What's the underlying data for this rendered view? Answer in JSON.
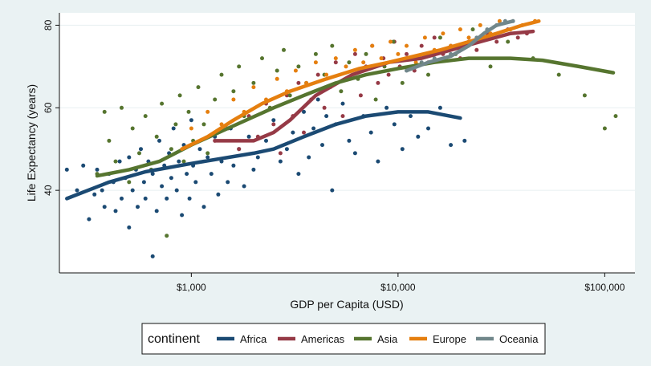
{
  "chart_data": {
    "type": "scatter",
    "title": "",
    "xlabel": "GDP per Capita (USD)",
    "ylabel": "Life Expectancy (years)",
    "x_scale": "log",
    "xlim": [
      230,
      140000
    ],
    "ylim": [
      20,
      83
    ],
    "x_ticks": [
      {
        "value": 1000,
        "label": "$1,000"
      },
      {
        "value": 10000,
        "label": "$10,000"
      },
      {
        "value": 100000,
        "label": "$100,000"
      }
    ],
    "y_ticks": [
      {
        "value": 40,
        "label": "40"
      },
      {
        "value": 60,
        "label": "60"
      },
      {
        "value": 80,
        "label": "80"
      }
    ],
    "grid": "horizontal",
    "legend": {
      "title": "continent",
      "position": "bottom"
    },
    "series": [
      {
        "name": "Africa",
        "color": "#1b4a73",
        "smooth": [
          [
            250,
            38
          ],
          [
            400,
            42
          ],
          [
            600,
            44.5
          ],
          [
            1000,
            46.5
          ],
          [
            2000,
            49
          ],
          [
            2500,
            50
          ],
          [
            3500,
            53
          ],
          [
            5000,
            56
          ],
          [
            7000,
            58
          ],
          [
            10000,
            59
          ],
          [
            14000,
            59
          ],
          [
            20000,
            57.5
          ]
        ],
        "points": [
          [
            250,
            45
          ],
          [
            280,
            40
          ],
          [
            300,
            46
          ],
          [
            320,
            33
          ],
          [
            340,
            39
          ],
          [
            350,
            45
          ],
          [
            370,
            40
          ],
          [
            380,
            36
          ],
          [
            400,
            44
          ],
          [
            420,
            42
          ],
          [
            430,
            35
          ],
          [
            450,
            47
          ],
          [
            460,
            38
          ],
          [
            480,
            43
          ],
          [
            500,
            48
          ],
          [
            500,
            31
          ],
          [
            520,
            40
          ],
          [
            540,
            45
          ],
          [
            550,
            36
          ],
          [
            570,
            50
          ],
          [
            590,
            42
          ],
          [
            600,
            38
          ],
          [
            620,
            47
          ],
          [
            650,
            24
          ],
          [
            650,
            44
          ],
          [
            680,
            35
          ],
          [
            700,
            52
          ],
          [
            720,
            41
          ],
          [
            740,
            46
          ],
          [
            760,
            38
          ],
          [
            780,
            49
          ],
          [
            800,
            43
          ],
          [
            820,
            55
          ],
          [
            850,
            40
          ],
          [
            870,
            47
          ],
          [
            900,
            34
          ],
          [
            920,
            51
          ],
          [
            950,
            44
          ],
          [
            980,
            38
          ],
          [
            1000,
            57
          ],
          [
            1020,
            46
          ],
          [
            1050,
            42
          ],
          [
            1100,
            50
          ],
          [
            1150,
            36
          ],
          [
            1200,
            48
          ],
          [
            1250,
            44
          ],
          [
            1300,
            53
          ],
          [
            1350,
            39
          ],
          [
            1400,
            47
          ],
          [
            1500,
            42
          ],
          [
            1550,
            55
          ],
          [
            1600,
            46
          ],
          [
            1700,
            50
          ],
          [
            1800,
            41
          ],
          [
            1900,
            53
          ],
          [
            2000,
            45
          ],
          [
            2100,
            48
          ],
          [
            2300,
            52
          ],
          [
            2500,
            57
          ],
          [
            2700,
            47
          ],
          [
            2900,
            50
          ],
          [
            3100,
            54
          ],
          [
            3300,
            44
          ],
          [
            3500,
            59
          ],
          [
            3700,
            48
          ],
          [
            3900,
            55
          ],
          [
            4100,
            62
          ],
          [
            4300,
            51
          ],
          [
            4500,
            58
          ],
          [
            4800,
            40
          ],
          [
            5000,
            56
          ],
          [
            5400,
            61
          ],
          [
            5800,
            52
          ],
          [
            6200,
            49
          ],
          [
            6800,
            58
          ],
          [
            7400,
            54
          ],
          [
            8000,
            47
          ],
          [
            8800,
            60
          ],
          [
            9600,
            56
          ],
          [
            10500,
            50
          ],
          [
            11500,
            58
          ],
          [
            12500,
            53
          ],
          [
            14000,
            55
          ],
          [
            16000,
            60
          ],
          [
            18000,
            51
          ],
          [
            21000,
            52
          ]
        ]
      },
      {
        "name": "Americas",
        "color": "#963a46",
        "smooth": [
          [
            1300,
            52
          ],
          [
            2000,
            52
          ],
          [
            2500,
            54
          ],
          [
            3000,
            57
          ],
          [
            4000,
            63
          ],
          [
            6000,
            68
          ],
          [
            9000,
            71
          ],
          [
            13000,
            72
          ],
          [
            18000,
            74
          ],
          [
            25000,
            76
          ],
          [
            35000,
            78
          ],
          [
            45000,
            78.5
          ]
        ],
        "points": [
          [
            1300,
            52
          ],
          [
            1500,
            55
          ],
          [
            1700,
            50
          ],
          [
            1900,
            58
          ],
          [
            2100,
            53
          ],
          [
            2300,
            61
          ],
          [
            2500,
            56
          ],
          [
            2700,
            49
          ],
          [
            2900,
            63
          ],
          [
            3100,
            58
          ],
          [
            3300,
            66
          ],
          [
            3500,
            54
          ],
          [
            3800,
            62
          ],
          [
            4100,
            68
          ],
          [
            4400,
            60
          ],
          [
            4700,
            65
          ],
          [
            5000,
            71
          ],
          [
            5400,
            58
          ],
          [
            5800,
            67
          ],
          [
            6200,
            73
          ],
          [
            6600,
            63
          ],
          [
            7000,
            70
          ],
          [
            7500,
            75
          ],
          [
            8000,
            66
          ],
          [
            8500,
            72
          ],
          [
            9000,
            68
          ],
          [
            9600,
            76
          ],
          [
            10200,
            70
          ],
          [
            11000,
            73
          ],
          [
            12000,
            69
          ],
          [
            13000,
            75
          ],
          [
            14000,
            71
          ],
          [
            15000,
            77
          ],
          [
            16500,
            73
          ],
          [
            18000,
            75
          ],
          [
            20000,
            72
          ],
          [
            22000,
            76
          ],
          [
            24000,
            74
          ],
          [
            27000,
            78
          ],
          [
            30000,
            76
          ],
          [
            34000,
            79
          ],
          [
            38000,
            77
          ],
          [
            42000,
            78
          ]
        ]
      },
      {
        "name": "Asia",
        "color": "#56752f",
        "smooth": [
          [
            350,
            43.5
          ],
          [
            500,
            45
          ],
          [
            700,
            47
          ],
          [
            1000,
            51
          ],
          [
            1500,
            55
          ],
          [
            2500,
            60
          ],
          [
            3500,
            63
          ],
          [
            5000,
            66
          ],
          [
            7000,
            68
          ],
          [
            10000,
            69.5
          ],
          [
            15000,
            71
          ],
          [
            22000,
            72
          ],
          [
            35000,
            72
          ],
          [
            50000,
            71.5
          ],
          [
            75000,
            70
          ],
          [
            110000,
            68.5
          ]
        ],
        "points": [
          [
            350,
            44
          ],
          [
            380,
            59
          ],
          [
            400,
            52
          ],
          [
            430,
            47
          ],
          [
            460,
            60
          ],
          [
            500,
            42
          ],
          [
            520,
            55
          ],
          [
            560,
            49
          ],
          [
            600,
            58
          ],
          [
            640,
            45
          ],
          [
            680,
            53
          ],
          [
            720,
            61
          ],
          [
            760,
            29
          ],
          [
            800,
            50
          ],
          [
            840,
            56
          ],
          [
            880,
            63
          ],
          [
            920,
            47
          ],
          [
            970,
            59
          ],
          [
            1020,
            52
          ],
          [
            1080,
            65
          ],
          [
            1150,
            56
          ],
          [
            1200,
            49
          ],
          [
            1300,
            62
          ],
          [
            1400,
            68
          ],
          [
            1500,
            55
          ],
          [
            1600,
            64
          ],
          [
            1700,
            70
          ],
          [
            1800,
            58
          ],
          [
            2000,
            66
          ],
          [
            2200,
            72
          ],
          [
            2400,
            60
          ],
          [
            2600,
            69
          ],
          [
            2800,
            74
          ],
          [
            3000,
            63
          ],
          [
            3300,
            70
          ],
          [
            3600,
            66
          ],
          [
            4000,
            73
          ],
          [
            4400,
            68
          ],
          [
            4800,
            75
          ],
          [
            5300,
            64
          ],
          [
            5800,
            71
          ],
          [
            6400,
            67
          ],
          [
            7000,
            73
          ],
          [
            7800,
            62
          ],
          [
            8600,
            70
          ],
          [
            9500,
            76
          ],
          [
            10500,
            66
          ],
          [
            12000,
            72
          ],
          [
            14000,
            68
          ],
          [
            16000,
            77
          ],
          [
            19000,
            73
          ],
          [
            23000,
            79
          ],
          [
            28000,
            70
          ],
          [
            34000,
            76
          ],
          [
            45000,
            72
          ],
          [
            60000,
            68
          ],
          [
            80000,
            63
          ],
          [
            100000,
            55
          ],
          [
            113000,
            58
          ]
        ]
      },
      {
        "name": "Europe",
        "color": "#e57f0f",
        "smooth": [
          [
            900,
            50
          ],
          [
            1200,
            53
          ],
          [
            1600,
            57
          ],
          [
            2200,
            61
          ],
          [
            3000,
            64
          ],
          [
            4500,
            67
          ],
          [
            6500,
            69.5
          ],
          [
            9000,
            71
          ],
          [
            12000,
            72.5
          ],
          [
            16000,
            74
          ],
          [
            22000,
            76
          ],
          [
            30000,
            78
          ],
          [
            40000,
            80
          ],
          [
            48000,
            81
          ]
        ],
        "points": [
          [
            1000,
            55
          ],
          [
            1200,
            59
          ],
          [
            1400,
            56
          ],
          [
            1600,
            62
          ],
          [
            1800,
            59
          ],
          [
            2000,
            65
          ],
          [
            2300,
            62
          ],
          [
            2600,
            67
          ],
          [
            2900,
            64
          ],
          [
            3200,
            69
          ],
          [
            3600,
            66
          ],
          [
            4000,
            71
          ],
          [
            4500,
            68
          ],
          [
            5000,
            72
          ],
          [
            5600,
            70
          ],
          [
            6200,
            74
          ],
          [
            6800,
            71
          ],
          [
            7500,
            75
          ],
          [
            8300,
            72
          ],
          [
            9200,
            76
          ],
          [
            10000,
            73
          ],
          [
            11000,
            75
          ],
          [
            12200,
            71
          ],
          [
            13500,
            77
          ],
          [
            15000,
            74
          ],
          [
            16500,
            78
          ],
          [
            18000,
            75
          ],
          [
            20000,
            79
          ],
          [
            22000,
            77
          ],
          [
            25000,
            80
          ],
          [
            28000,
            78
          ],
          [
            31000,
            81
          ],
          [
            35000,
            79
          ],
          [
            40000,
            80
          ],
          [
            46000,
            81
          ]
        ]
      },
      {
        "name": "Oceania",
        "color": "#71878b",
        "smooth": [
          [
            11000,
            69
          ],
          [
            14000,
            71
          ],
          [
            18000,
            72.5
          ],
          [
            22000,
            75
          ],
          [
            26000,
            78
          ],
          [
            30000,
            80
          ],
          [
            36000,
            81
          ]
        ],
        "points": [
          [
            11000,
            69
          ],
          [
            13000,
            71
          ],
          [
            15000,
            72
          ],
          [
            18000,
            73
          ],
          [
            21000,
            75
          ],
          [
            24000,
            77
          ],
          [
            27000,
            79
          ],
          [
            30000,
            80
          ],
          [
            33000,
            81
          ],
          [
            36000,
            81
          ]
        ]
      }
    ]
  }
}
